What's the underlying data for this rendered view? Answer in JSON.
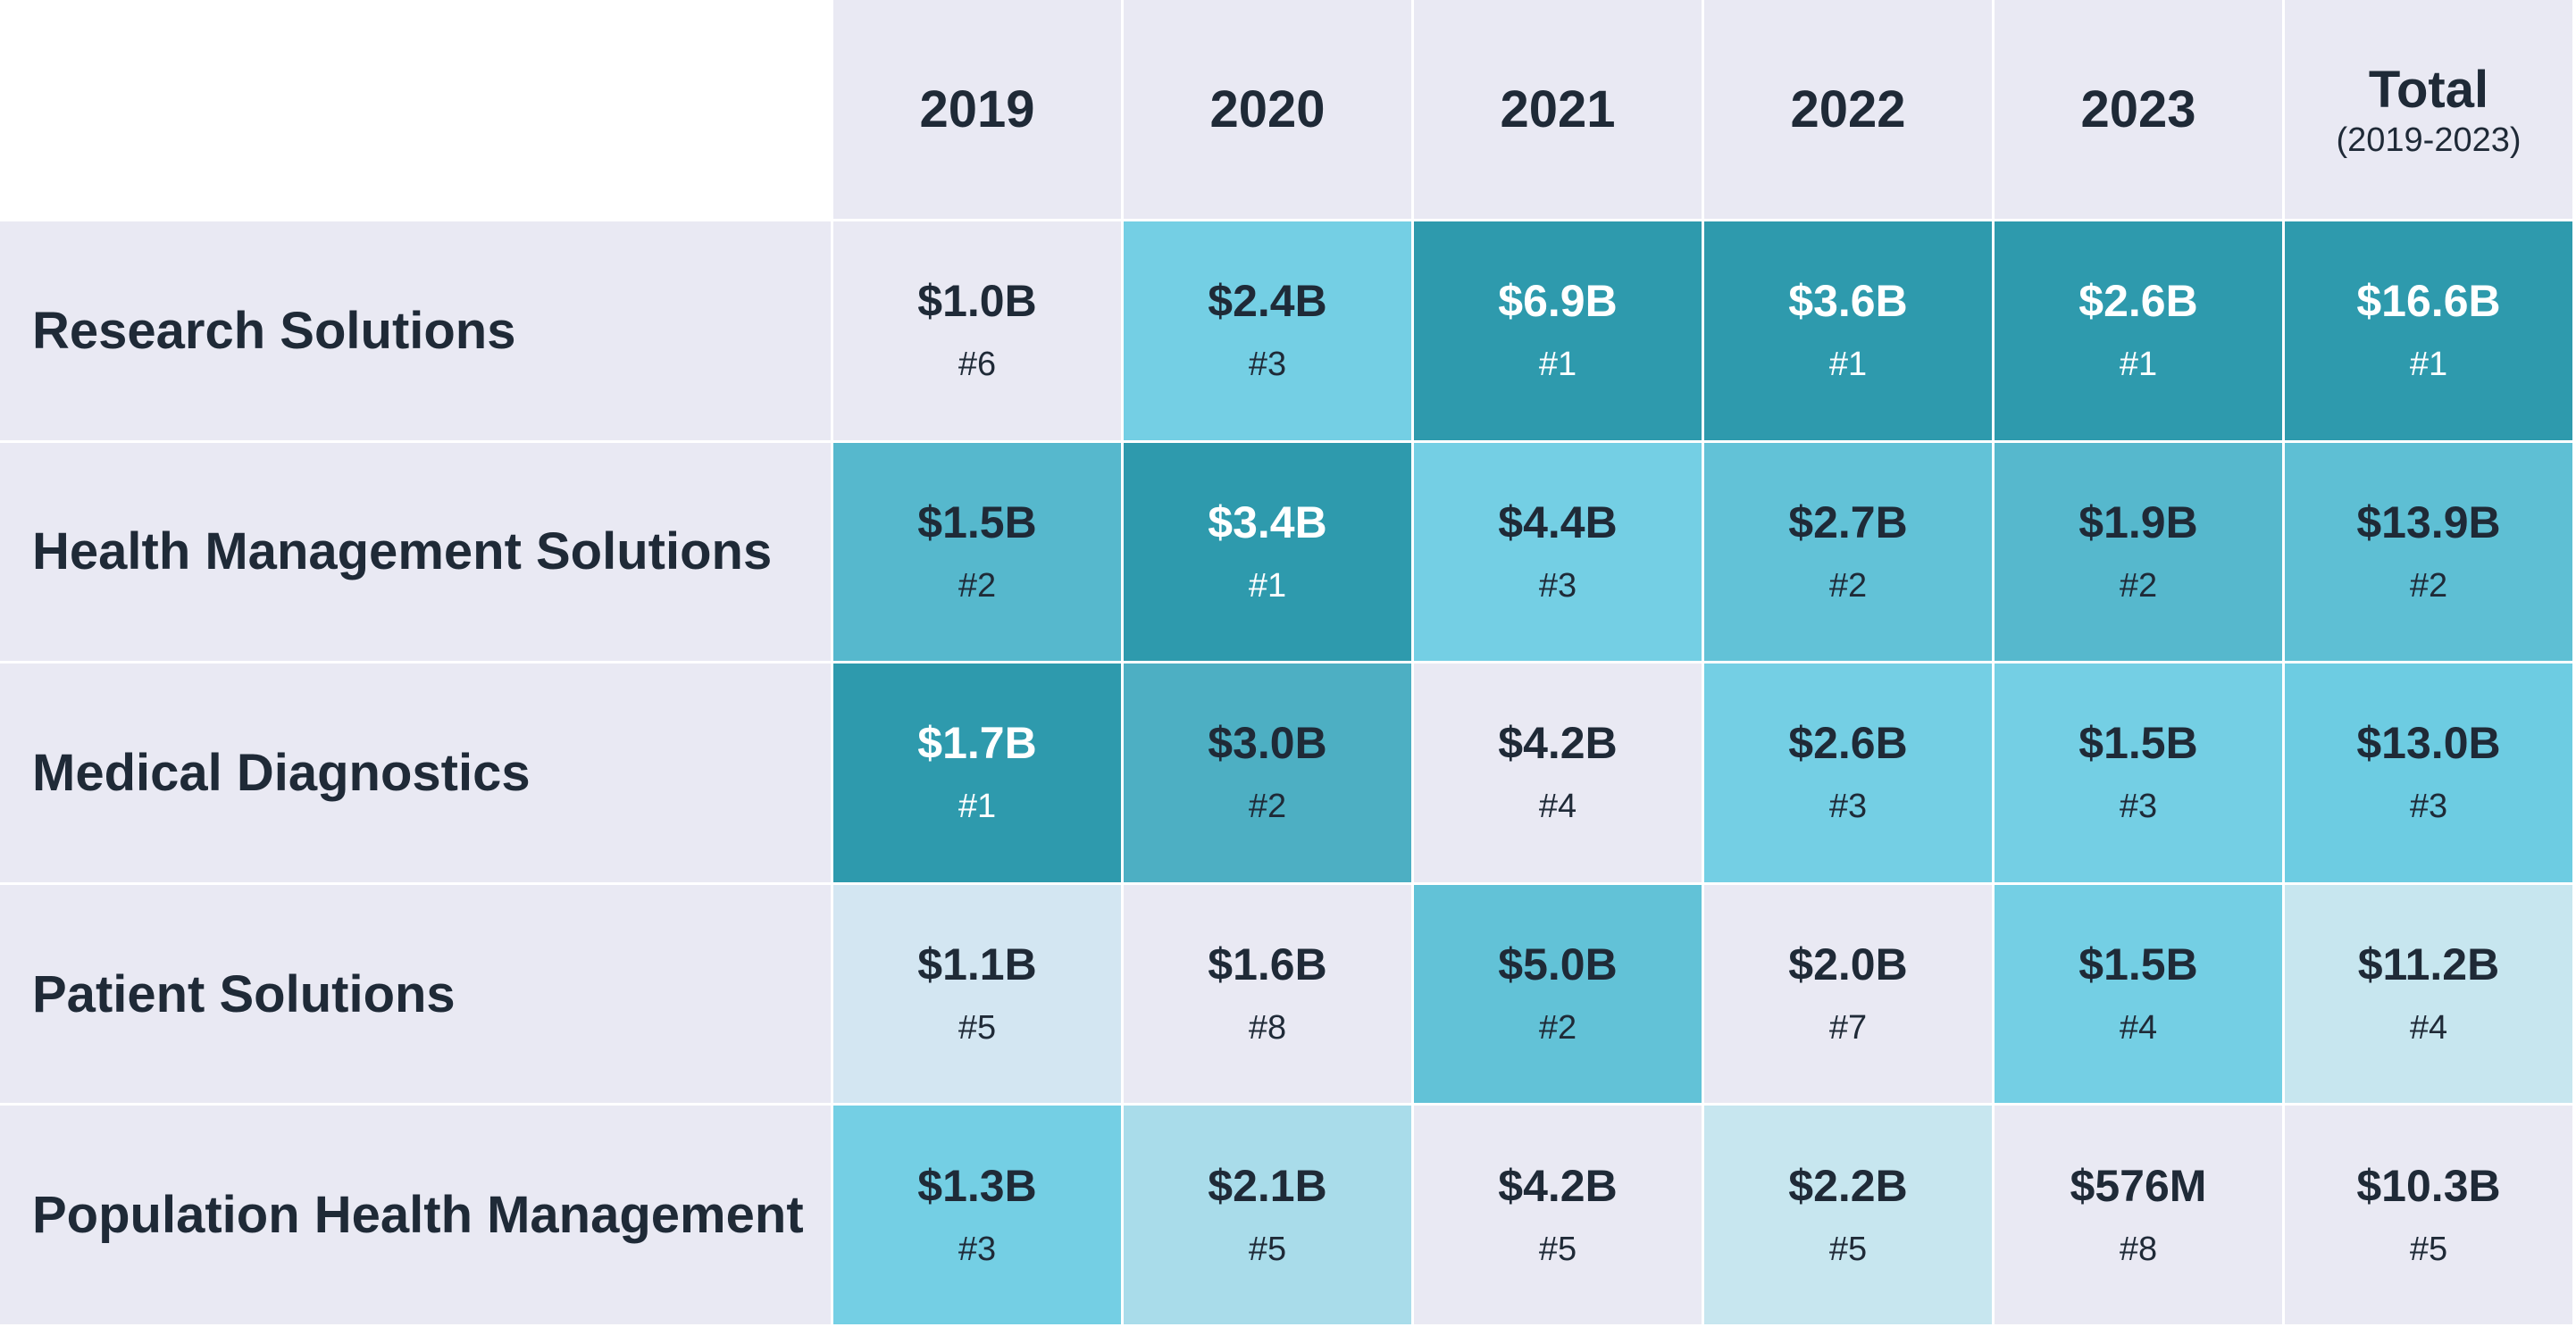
{
  "chart_data": {
    "type": "heatmap",
    "columns": [
      {
        "label": "2019",
        "sub": ""
      },
      {
        "label": "2020",
        "sub": ""
      },
      {
        "label": "2021",
        "sub": ""
      },
      {
        "label": "2022",
        "sub": ""
      },
      {
        "label": "2023",
        "sub": ""
      },
      {
        "label": "Total",
        "sub": "(2019-2023)"
      }
    ],
    "rows": [
      {
        "label": "Research Solutions",
        "cells": [
          {
            "value": "$1.0B",
            "rank": "#6",
            "bg": "#e9e9f3",
            "fg": "#1f2a37"
          },
          {
            "value": "$2.4B",
            "rank": "#3",
            "bg": "#74cfe4",
            "fg": "#1f2a37"
          },
          {
            "value": "$6.9B",
            "rank": "#1",
            "bg": "#2e9aad",
            "fg": "#ffffff"
          },
          {
            "value": "$3.6B",
            "rank": "#1",
            "bg": "#2e9aad",
            "fg": "#ffffff"
          },
          {
            "value": "$2.6B",
            "rank": "#1",
            "bg": "#2e9aad",
            "fg": "#ffffff"
          },
          {
            "value": "$16.6B",
            "rank": "#1",
            "bg": "#2e9aad",
            "fg": "#ffffff"
          }
        ]
      },
      {
        "label": "Health Management Solutions",
        "cells": [
          {
            "value": "$1.5B",
            "rank": "#2",
            "bg": "#56b8cd",
            "fg": "#1f2a37"
          },
          {
            "value": "$3.4B",
            "rank": "#1",
            "bg": "#2e9aad",
            "fg": "#ffffff"
          },
          {
            "value": "$4.4B",
            "rank": "#3",
            "bg": "#74cfe4",
            "fg": "#1f2a37"
          },
          {
            "value": "$2.7B",
            "rank": "#2",
            "bg": "#62c2d7",
            "fg": "#1f2a37"
          },
          {
            "value": "$1.9B",
            "rank": "#2",
            "bg": "#56b8cd",
            "fg": "#1f2a37"
          },
          {
            "value": "$13.9B",
            "rank": "#2",
            "bg": "#5ebfd4",
            "fg": "#1f2a37"
          }
        ]
      },
      {
        "label": "Medical Diagnostics",
        "cells": [
          {
            "value": "$1.7B",
            "rank": "#1",
            "bg": "#2e9aad",
            "fg": "#ffffff"
          },
          {
            "value": "$3.0B",
            "rank": "#2",
            "bg": "#4dafc3",
            "fg": "#1f2a37"
          },
          {
            "value": "$4.2B",
            "rank": "#4",
            "bg": "#e9e9f3",
            "fg": "#1f2a37"
          },
          {
            "value": "$2.6B",
            "rank": "#3",
            "bg": "#74cfe4",
            "fg": "#1f2a37"
          },
          {
            "value": "$1.5B",
            "rank": "#3",
            "bg": "#74cfe4",
            "fg": "#1f2a37"
          },
          {
            "value": "$13.0B",
            "rank": "#3",
            "bg": "#6dcce2",
            "fg": "#1f2a37"
          }
        ]
      },
      {
        "label": "Patient Solutions",
        "cells": [
          {
            "value": "$1.1B",
            "rank": "#5",
            "bg": "#d3e6f2",
            "fg": "#1f2a37"
          },
          {
            "value": "$1.6B",
            "rank": "#8",
            "bg": "#e9e9f3",
            "fg": "#1f2a37"
          },
          {
            "value": "$5.0B",
            "rank": "#2",
            "bg": "#62c2d7",
            "fg": "#1f2a37"
          },
          {
            "value": "$2.0B",
            "rank": "#7",
            "bg": "#e9e9f3",
            "fg": "#1f2a37"
          },
          {
            "value": "$1.5B",
            "rank": "#4",
            "bg": "#74cfe4",
            "fg": "#1f2a37"
          },
          {
            "value": "$11.2B",
            "rank": "#4",
            "bg": "#c7e6ef",
            "fg": "#1f2a37"
          }
        ]
      },
      {
        "label": "Population Health Management",
        "cells": [
          {
            "value": "$1.3B",
            "rank": "#3",
            "bg": "#74cfe4",
            "fg": "#1f2a37"
          },
          {
            "value": "$2.1B",
            "rank": "#5",
            "bg": "#a9dcea",
            "fg": "#1f2a37"
          },
          {
            "value": "$4.2B",
            "rank": "#5",
            "bg": "#e9e9f3",
            "fg": "#1f2a37"
          },
          {
            "value": "$2.2B",
            "rank": "#5",
            "bg": "#c7e6ef",
            "fg": "#1f2a37"
          },
          {
            "value": "$576M",
            "rank": "#8",
            "bg": "#e9e9f3",
            "fg": "#1f2a37"
          },
          {
            "value": "$10.3B",
            "rank": "#5",
            "bg": "#e9e9f3",
            "fg": "#1f2a37"
          }
        ]
      }
    ]
  }
}
